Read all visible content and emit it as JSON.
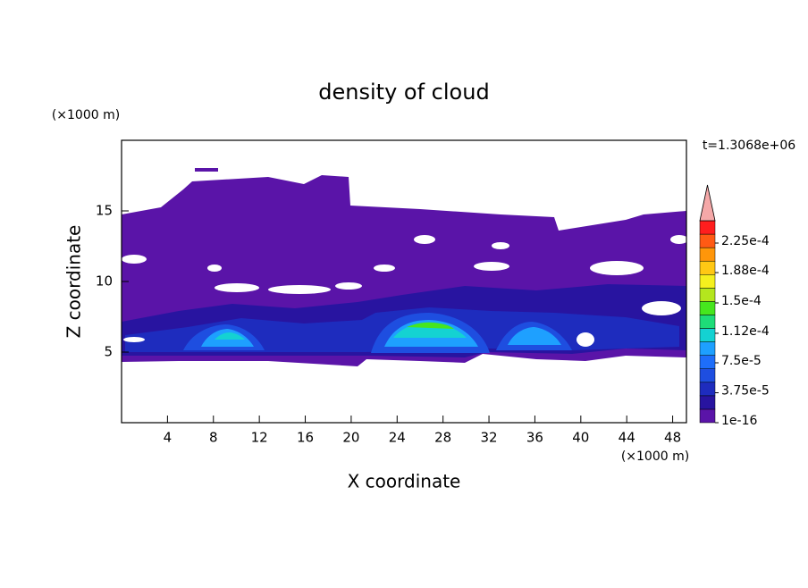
{
  "chart_data": {
    "type": "contour",
    "title": "density of cloud",
    "x_label": "X coordinate",
    "y_label": "Z coordinate",
    "x_unit": "(×1000 m)",
    "y_unit": "(×1000 m)",
    "annotation": "t=1.3068e+06",
    "xlim": [
      0,
      49.2
    ],
    "ylim": [
      0,
      20
    ],
    "xticks": [
      4,
      8,
      12,
      16,
      20,
      24,
      28,
      32,
      36,
      40,
      44,
      48
    ],
    "yticks": [
      5,
      10,
      15
    ],
    "colorbar": {
      "lim": [
        1e-16,
        0.000253
      ],
      "ticks": [
        1e-16,
        {
          "value": 3.75e-05,
          "label": "3.75e-5"
        },
        {
          "value": 7.5e-05,
          "label": "7.5e-5"
        },
        {
          "value": 0.000112,
          "label": "1.12e-4"
        },
        {
          "value": 0.00015,
          "label": "1.5e-4"
        },
        {
          "value": 0.000188,
          "label": "1.88e-4"
        },
        {
          "value": 0.000225,
          "label": "2.25e-4"
        }
      ],
      "colors": [
        "#5a14a8",
        "#2814a0",
        "#1e2cbe",
        "#1e4ee0",
        "#1e6efa",
        "#1ea0ff",
        "#14d2d2",
        "#1edc78",
        "#46e61e",
        "#b4e61e",
        "#f5f01e",
        "#ffc814",
        "#ff960a",
        "#ff5a14",
        "#ff1e1e"
      ],
      "extend_color": "#f5a8a8"
    }
  }
}
